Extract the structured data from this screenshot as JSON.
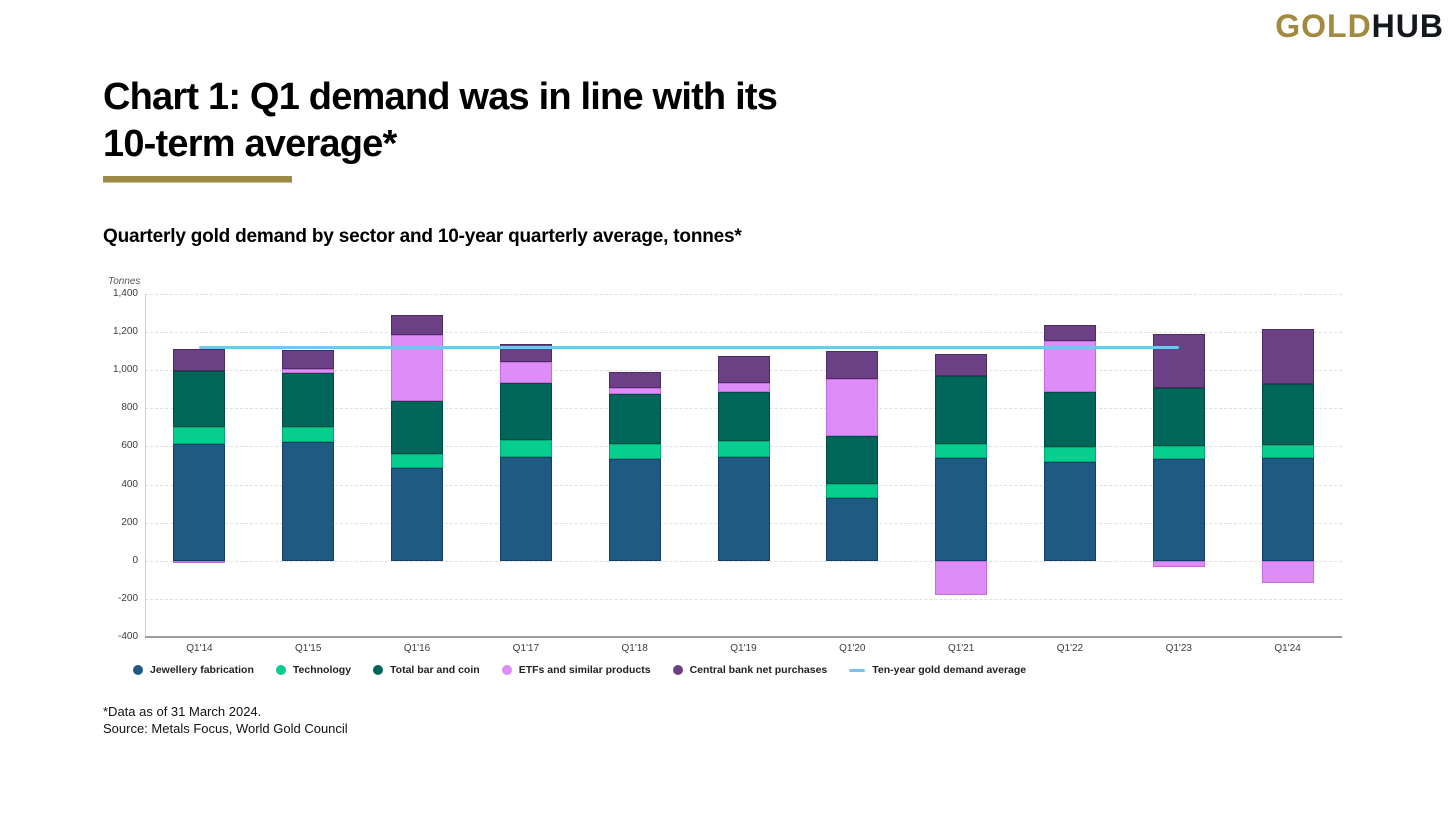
{
  "logo": {
    "gold": "GOLD",
    "hub": "HUB"
  },
  "title_line1": "Chart 1: Q1 demand was in line with its",
  "title_line2": "10-term average*",
  "subtitle": "Quarterly gold demand by sector and 10-year quarterly average, tonnes*",
  "footnotes": [
    "*Data as of 31 March 2024.",
    "Source: Metals Focus, World Gold Council"
  ],
  "chart_data": {
    "type": "bar",
    "stacked": true,
    "title": "Quarterly gold demand by sector and 10-year quarterly average, tonnes",
    "unit_label": "Tonnes",
    "xlabel": "",
    "ylabel": "Tonnes",
    "ylim": [
      -400,
      1400
    ],
    "ytick_step": 200,
    "ytick_labels": [
      "1,400",
      "1,200",
      "1,000",
      "800",
      "600",
      "400",
      "200",
      "0",
      "-200",
      "-400"
    ],
    "grid": true,
    "legend_position": "bottom",
    "categories": [
      "Q1'14",
      "Q1'15",
      "Q1'16",
      "Q1'17",
      "Q1'18",
      "Q1'19",
      "Q1'20",
      "Q1'21",
      "Q1'22",
      "Q1'23",
      "Q1'24"
    ],
    "series": [
      {
        "name": "Jewellery fabrication",
        "color": "#1F5A82",
        "border_color": "#163E6B",
        "values": [
          615,
          625,
          485,
          547,
          534,
          542,
          329,
          539,
          516,
          535,
          539
        ]
      },
      {
        "name": "Technology",
        "color": "#05CE8F",
        "border_color": "#05A873",
        "values": [
          85,
          75,
          76,
          88,
          79,
          88,
          73,
          75,
          81,
          65,
          71
        ]
      },
      {
        "name": "Total bar and coin",
        "color": "#00665A",
        "border_color": "#004B41",
        "values": [
          298,
          285,
          275,
          297,
          262,
          255,
          255,
          358,
          288,
          306,
          317
        ]
      },
      {
        "name": "ETFs and similar products",
        "color": "#DE8CF7",
        "border_color": "#C26DDE",
        "values": [
          -10,
          22,
          348,
          110,
          32,
          46,
          297,
          -178,
          270,
          -35,
          -117
        ]
      },
      {
        "name": "Central bank net purchases",
        "color": "#6B4084",
        "border_color": "#4E2B62",
        "values": [
          112,
          98,
          105,
          95,
          82,
          143,
          145,
          114,
          82,
          284,
          290
        ]
      }
    ],
    "line_series": {
      "name": "Ten-year gold demand average",
      "color": "#76C4F0",
      "value": 1120,
      "span_categories": [
        "Q1'14",
        "Q1'23"
      ]
    }
  }
}
